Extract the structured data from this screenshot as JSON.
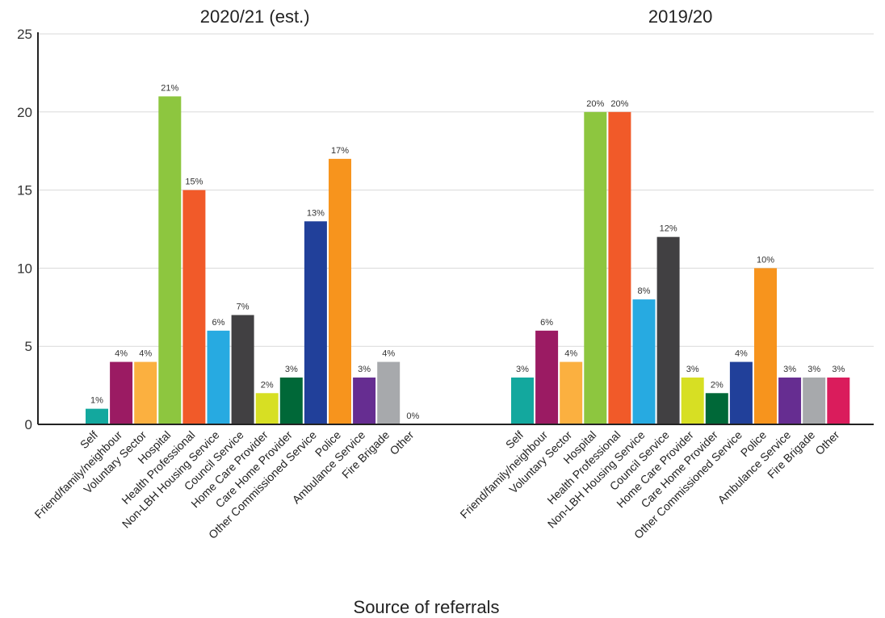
{
  "chart_data": {
    "type": "bar",
    "xlabel": "Source of referrals",
    "ylabel": "",
    "ylim": [
      0,
      25
    ],
    "yticks": [
      0,
      5,
      10,
      15,
      20,
      25
    ],
    "grid": true,
    "value_suffix": "%",
    "groups": [
      {
        "name": "2020/21 (est.)",
        "categories": [
          "Self",
          "Friend/family/neighbour",
          "Voluntary Sector",
          "Hospital",
          "Health Professional",
          "Non-LBH Housing Service",
          "Council Service",
          "Home Care Provider",
          "Care Home Provider",
          "Other Commissioned Service",
          "Police",
          "Ambulance Service",
          "Fire Brigade",
          "Other"
        ],
        "values": [
          1,
          4,
          4,
          21,
          15,
          6,
          7,
          2,
          3,
          13,
          17,
          3,
          4,
          0
        ]
      },
      {
        "name": "2019/20",
        "categories": [
          "Self",
          "Friend/family/neighbour",
          "Voluntary Sector",
          "Hospital",
          "Health Professional",
          "Non-LBH Housing Service",
          "Council Service",
          "Home Care Provider",
          "Care Home Provider",
          "Other Commissioned Service",
          "Police",
          "Ambulance Service",
          "Fire Brigade",
          "Other"
        ],
        "values": [
          3,
          6,
          4,
          20,
          20,
          8,
          12,
          3,
          2,
          4,
          10,
          3,
          3,
          3
        ]
      }
    ],
    "colors": [
      "#13a89e",
      "#9b1b63",
      "#fbb040",
      "#8dc63f",
      "#f15a29",
      "#27aae1",
      "#414042",
      "#d7df23",
      "#006838",
      "#21409a",
      "#f7941d",
      "#662d91",
      "#a7a9ac",
      "#da1c5c"
    ]
  }
}
